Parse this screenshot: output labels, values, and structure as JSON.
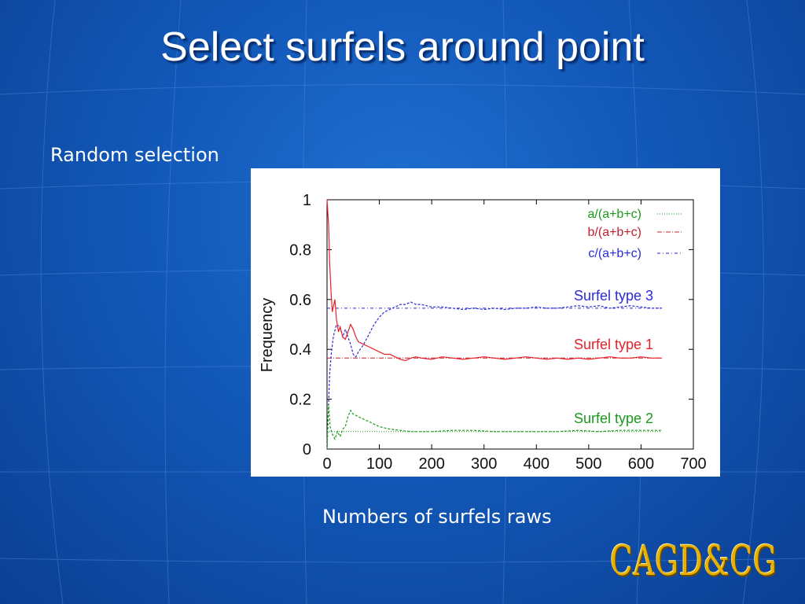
{
  "slide": {
    "title": "Select surfels around point",
    "subtitle": "Random selection",
    "x_caption": "Numbers of surfels raws",
    "logo": "CAGD&CG"
  },
  "colors": {
    "background": "#1258b8",
    "green": "#1a9a1a",
    "red": "#e8202a",
    "blue": "#2a2ad8"
  },
  "chart_data": {
    "type": "line",
    "title": "",
    "xlabel": "",
    "ylabel": "Frequency",
    "xlim": [
      0,
      700
    ],
    "ylim": [
      0,
      1
    ],
    "x_ticks": [
      "0",
      "100",
      "200",
      "300",
      "400",
      "500",
      "600",
      "700"
    ],
    "y_ticks": [
      "0",
      "0.2",
      "0.4",
      "0.6",
      "0.8",
      "1"
    ],
    "legend_position": "top-right",
    "legend": [
      {
        "label": "a/(a+b+c)",
        "color": "#1a9a1a",
        "dash": "1,2"
      },
      {
        "label": "b/(a+b+c)",
        "color": "#c02030",
        "dash": "6,2,1,2"
      },
      {
        "label": "c/(a+b+c)",
        "color": "#2a2ad8",
        "dash": "4,3,1,3"
      }
    ],
    "annotations": [
      {
        "text": "Surfel type 3",
        "color": "#2a2ad8"
      },
      {
        "text": "Surfel type 1",
        "color": "#e8202a"
      },
      {
        "text": "Surfel type 2",
        "color": "#1a9a1a"
      }
    ],
    "reference_lines": [
      {
        "name": "a/(a+b+c)",
        "y": 0.07,
        "x_range": [
          0,
          640
        ],
        "color": "#1a9a1a",
        "dash": "1,2"
      },
      {
        "name": "b/(a+b+c)",
        "y": 0.365,
        "x_range": [
          0,
          640
        ],
        "color": "#c02030",
        "dash": "6,2,1,2"
      },
      {
        "name": "c/(a+b+c)",
        "y": 0.565,
        "x_range": [
          0,
          640
        ],
        "color": "#2a2ad8",
        "dash": "4,3,1,3"
      }
    ],
    "series": [
      {
        "name": "Surfel type 3",
        "color": "#2a2ad8",
        "dash": "3,2",
        "points": [
          [
            0,
            0
          ],
          [
            5,
            0.3
          ],
          [
            8,
            0.38
          ],
          [
            12,
            0.45
          ],
          [
            18,
            0.5
          ],
          [
            25,
            0.49
          ],
          [
            30,
            0.45
          ],
          [
            35,
            0.48
          ],
          [
            40,
            0.45
          ],
          [
            45,
            0.42
          ],
          [
            50,
            0.38
          ],
          [
            55,
            0.37
          ],
          [
            60,
            0.39
          ],
          [
            70,
            0.42
          ],
          [
            80,
            0.46
          ],
          [
            90,
            0.5
          ],
          [
            100,
            0.53
          ],
          [
            110,
            0.55
          ],
          [
            120,
            0.56
          ],
          [
            130,
            0.57
          ],
          [
            140,
            0.58
          ],
          [
            150,
            0.58
          ],
          [
            160,
            0.59
          ],
          [
            170,
            0.58
          ],
          [
            180,
            0.58
          ],
          [
            200,
            0.57
          ],
          [
            220,
            0.57
          ],
          [
            240,
            0.565
          ],
          [
            260,
            0.56
          ],
          [
            280,
            0.565
          ],
          [
            300,
            0.56
          ],
          [
            320,
            0.565
          ],
          [
            340,
            0.56
          ],
          [
            360,
            0.565
          ],
          [
            380,
            0.565
          ],
          [
            400,
            0.57
          ],
          [
            420,
            0.565
          ],
          [
            440,
            0.565
          ],
          [
            460,
            0.57
          ],
          [
            480,
            0.575
          ],
          [
            500,
            0.57
          ],
          [
            520,
            0.575
          ],
          [
            540,
            0.565
          ],
          [
            560,
            0.57
          ],
          [
            580,
            0.575
          ],
          [
            600,
            0.57
          ],
          [
            620,
            0.565
          ],
          [
            640,
            0.565
          ]
        ]
      },
      {
        "name": "Surfel type 1",
        "color": "#e8202a",
        "dash": "",
        "points": [
          [
            0,
            1.0
          ],
          [
            3,
            0.9
          ],
          [
            5,
            0.75
          ],
          [
            8,
            0.62
          ],
          [
            10,
            0.55
          ],
          [
            13,
            0.58
          ],
          [
            15,
            0.6
          ],
          [
            18,
            0.52
          ],
          [
            22,
            0.47
          ],
          [
            25,
            0.49
          ],
          [
            30,
            0.45
          ],
          [
            35,
            0.44
          ],
          [
            40,
            0.47
          ],
          [
            45,
            0.5
          ],
          [
            50,
            0.48
          ],
          [
            55,
            0.45
          ],
          [
            60,
            0.43
          ],
          [
            70,
            0.42
          ],
          [
            80,
            0.41
          ],
          [
            90,
            0.4
          ],
          [
            100,
            0.39
          ],
          [
            110,
            0.38
          ],
          [
            120,
            0.38
          ],
          [
            130,
            0.37
          ],
          [
            140,
            0.36
          ],
          [
            150,
            0.355
          ],
          [
            160,
            0.365
          ],
          [
            170,
            0.37
          ],
          [
            180,
            0.365
          ],
          [
            200,
            0.36
          ],
          [
            220,
            0.37
          ],
          [
            240,
            0.365
          ],
          [
            260,
            0.36
          ],
          [
            280,
            0.365
          ],
          [
            300,
            0.37
          ],
          [
            320,
            0.365
          ],
          [
            340,
            0.36
          ],
          [
            360,
            0.365
          ],
          [
            380,
            0.37
          ],
          [
            400,
            0.365
          ],
          [
            420,
            0.36
          ],
          [
            440,
            0.365
          ],
          [
            460,
            0.36
          ],
          [
            480,
            0.365
          ],
          [
            500,
            0.36
          ],
          [
            520,
            0.365
          ],
          [
            540,
            0.37
          ],
          [
            560,
            0.365
          ],
          [
            580,
            0.365
          ],
          [
            600,
            0.37
          ],
          [
            620,
            0.365
          ],
          [
            640,
            0.365
          ]
        ]
      },
      {
        "name": "Surfel type 2",
        "color": "#1a9a1a",
        "dash": "3,2",
        "points": [
          [
            0,
            0
          ],
          [
            3,
            0.18
          ],
          [
            6,
            0.09
          ],
          [
            10,
            0.06
          ],
          [
            15,
            0.04
          ],
          [
            20,
            0.07
          ],
          [
            25,
            0.05
          ],
          [
            30,
            0.08
          ],
          [
            35,
            0.09
          ],
          [
            40,
            0.13
          ],
          [
            45,
            0.155
          ],
          [
            50,
            0.14
          ],
          [
            60,
            0.13
          ],
          [
            70,
            0.12
          ],
          [
            80,
            0.11
          ],
          [
            90,
            0.1
          ],
          [
            100,
            0.09
          ],
          [
            110,
            0.085
          ],
          [
            120,
            0.08
          ],
          [
            140,
            0.075
          ],
          [
            160,
            0.07
          ],
          [
            180,
            0.07
          ],
          [
            200,
            0.07
          ],
          [
            240,
            0.075
          ],
          [
            280,
            0.075
          ],
          [
            320,
            0.07
          ],
          [
            360,
            0.07
          ],
          [
            400,
            0.07
          ],
          [
            440,
            0.07
          ],
          [
            480,
            0.075
          ],
          [
            520,
            0.07
          ],
          [
            560,
            0.075
          ],
          [
            600,
            0.075
          ],
          [
            640,
            0.075
          ]
        ]
      }
    ]
  }
}
